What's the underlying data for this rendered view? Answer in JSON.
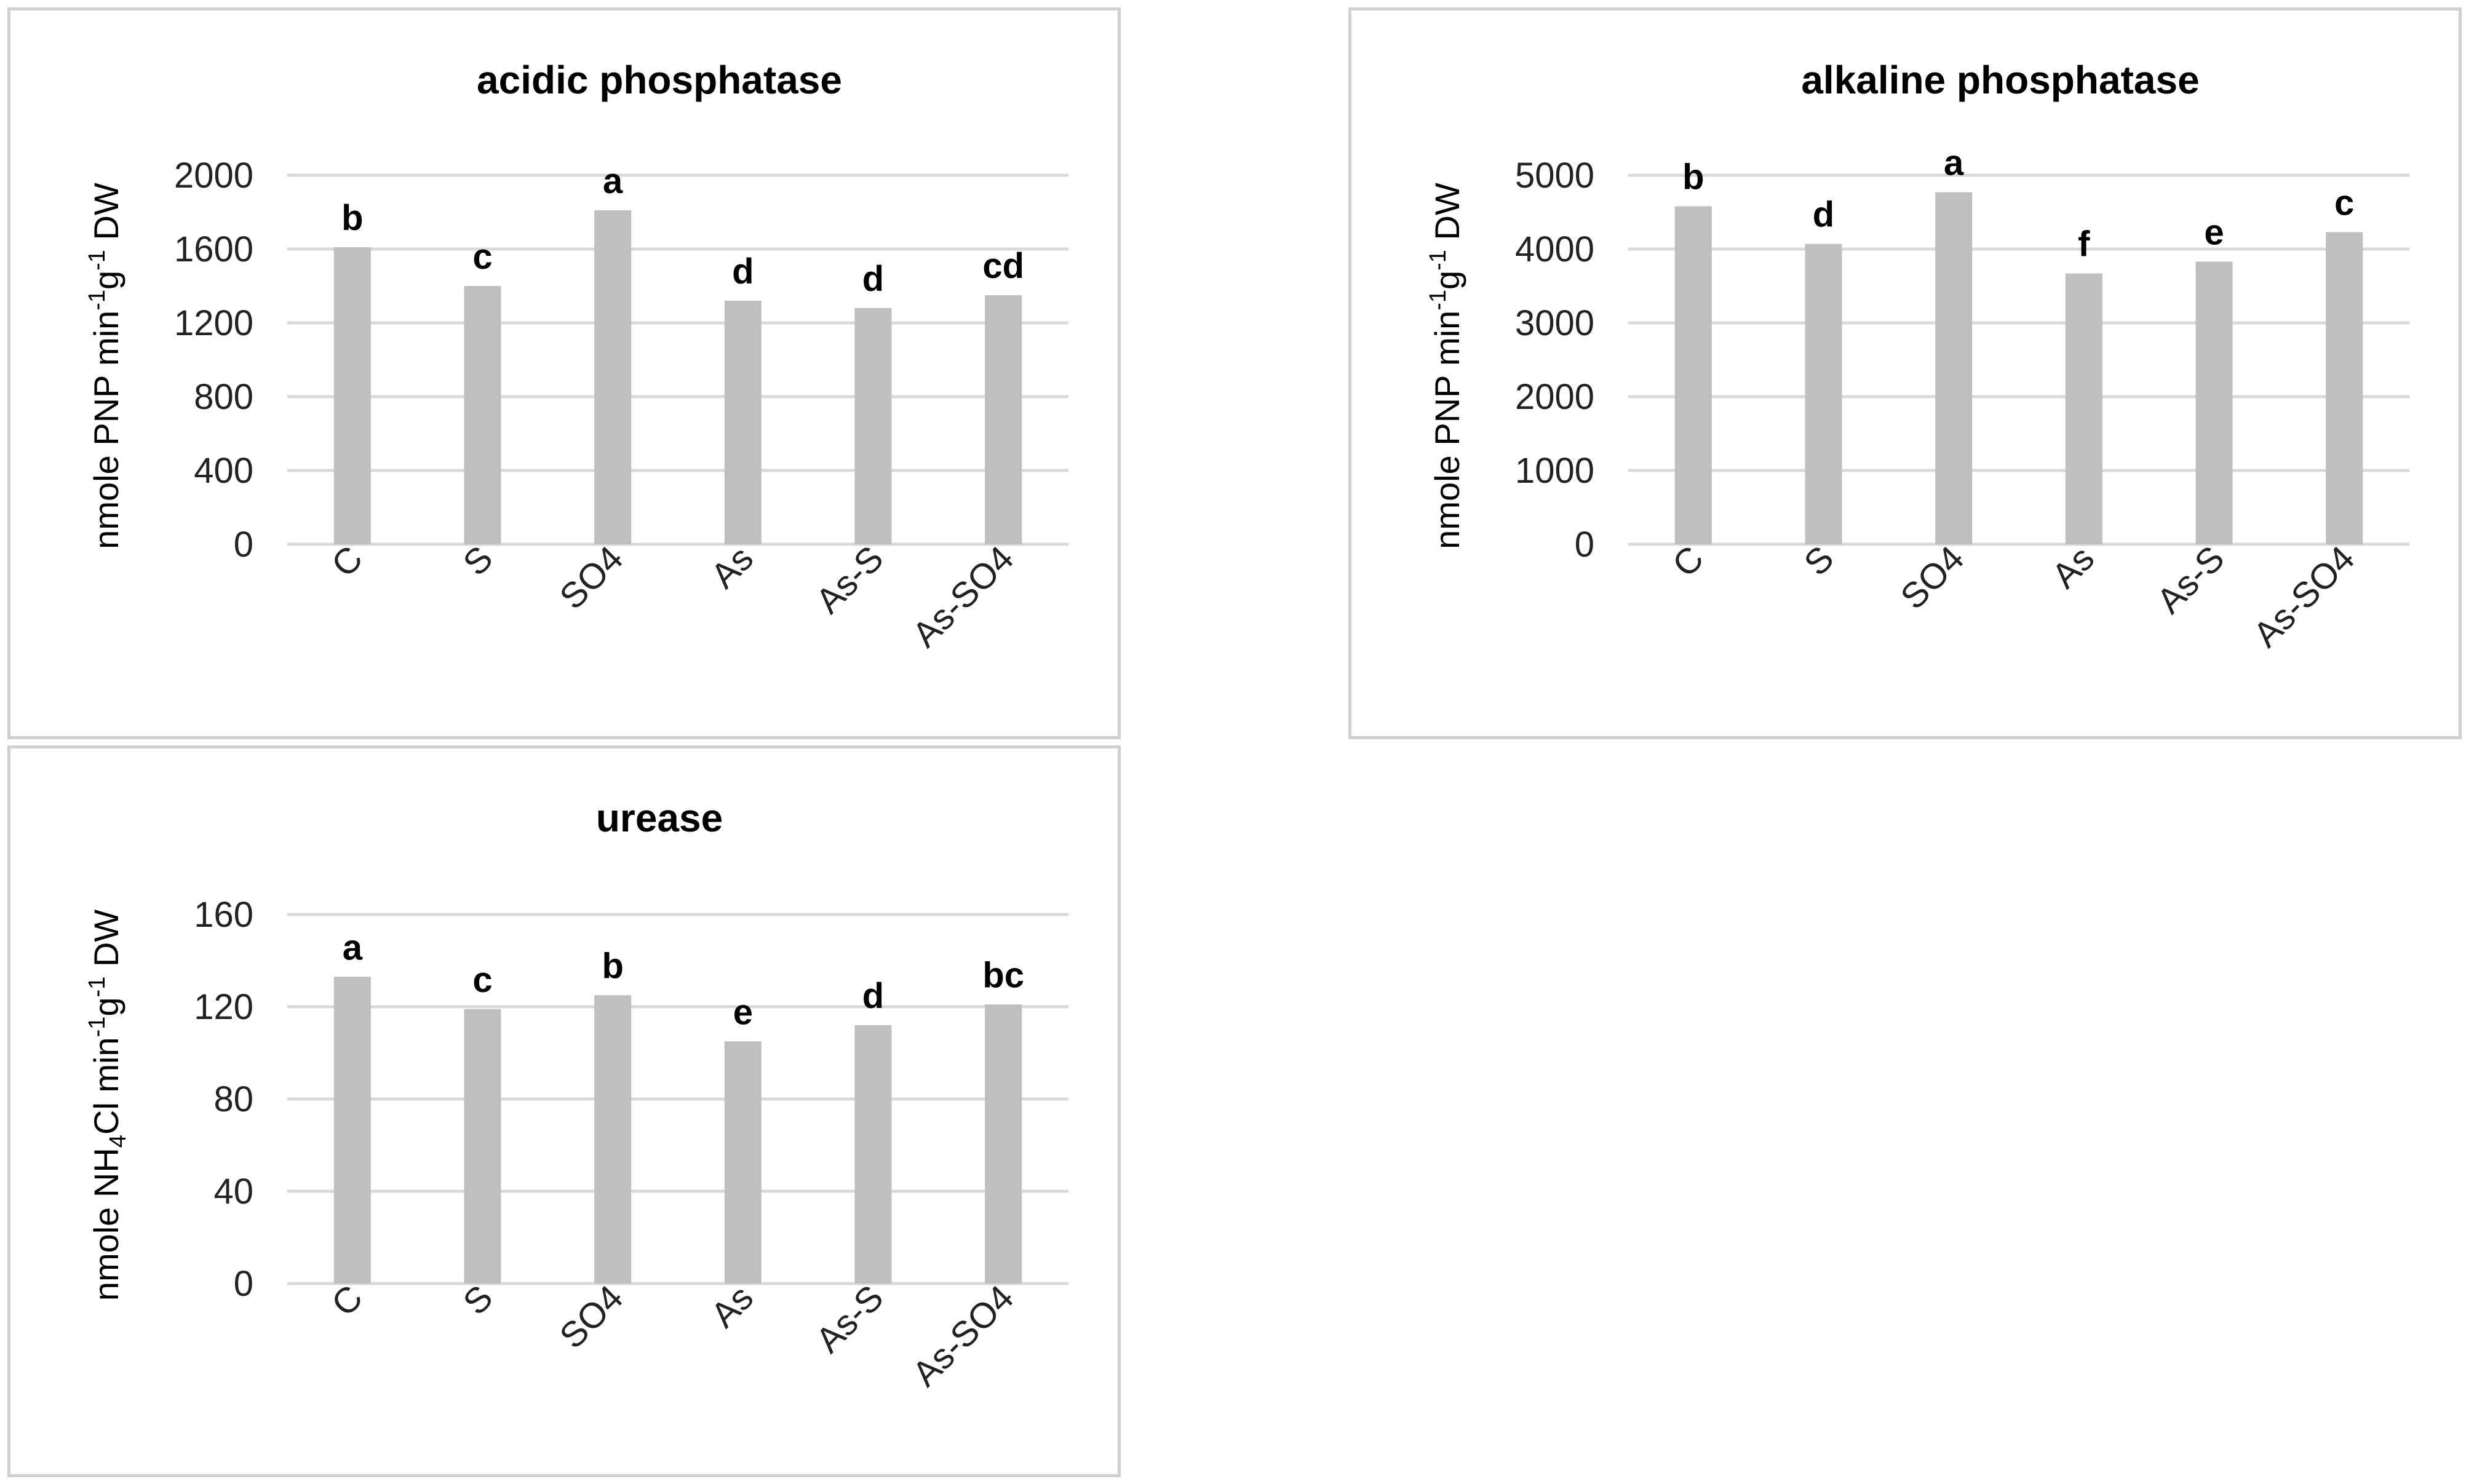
{
  "chart_data": [
    {
      "type": "bar",
      "title": "acidic phosphatase",
      "ylabel": {
        "pre": "nmole PNP min",
        "sup1": "-1",
        "mid": "g",
        "sup2": "-1",
        "post": " DW"
      },
      "categories": [
        "C",
        "S",
        "SO4",
        "As",
        "As-S",
        "As-SO4"
      ],
      "values": [
        1610,
        1400,
        1810,
        1320,
        1280,
        1350
      ],
      "significance_letters": [
        "b",
        "c",
        "a",
        "d",
        "d",
        "cd"
      ],
      "ylim": [
        0,
        2000
      ],
      "yticks": [
        0,
        400,
        800,
        1200,
        1600,
        2000
      ],
      "grid": true,
      "colors": {
        "bar": "#bfbfbf",
        "grid": "#d9d9d9"
      }
    },
    {
      "type": "bar",
      "title": "alkaline phosphatase",
      "ylabel": {
        "pre": "nmole PNP min",
        "sup1": "-1",
        "mid": "g",
        "sup2": "-1",
        "post": " DW"
      },
      "categories": [
        "C",
        "S",
        "SO4",
        "As",
        "As-S",
        "As-SO4"
      ],
      "values": [
        4580,
        4070,
        4770,
        3670,
        3830,
        4230
      ],
      "significance_letters": [
        "b",
        "d",
        "a",
        "f",
        "e",
        "c"
      ],
      "ylim": [
        0,
        5000
      ],
      "yticks": [
        0,
        1000,
        2000,
        3000,
        4000,
        5000
      ],
      "grid": true,
      "colors": {
        "bar": "#bfbfbf",
        "grid": "#d9d9d9"
      }
    },
    {
      "type": "bar",
      "title": "urease",
      "ylabel": {
        "pre": "nmole NH",
        "sub": "4",
        "mid": "Cl min",
        "sup1": "-1",
        "post": "g",
        "sup2": "-1",
        "post2": " DW"
      },
      "categories": [
        "C",
        "S",
        "SO4",
        "As",
        "As-S",
        "As-SO4"
      ],
      "values": [
        133,
        119,
        125,
        105,
        112,
        121
      ],
      "significance_letters": [
        "a",
        "c",
        "b",
        "e",
        "d",
        "bc"
      ],
      "ylim": [
        0,
        160
      ],
      "yticks": [
        0,
        40,
        80,
        120,
        160
      ],
      "grid": true,
      "colors": {
        "bar": "#bfbfbf",
        "grid": "#d9d9d9"
      }
    }
  ]
}
